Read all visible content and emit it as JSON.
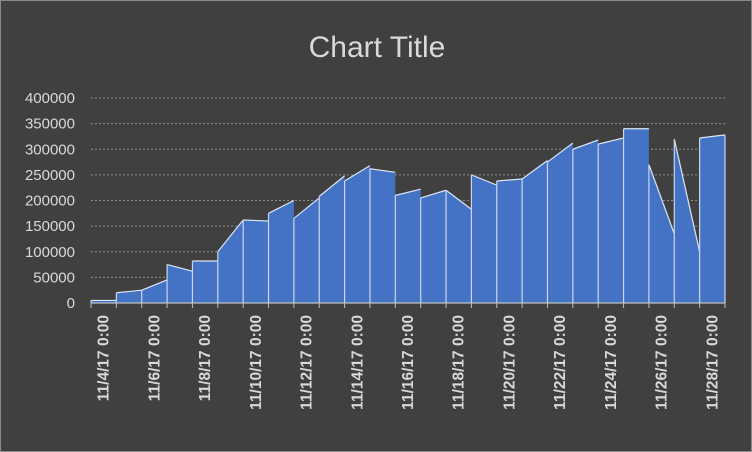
{
  "chart_data": {
    "type": "area",
    "title": "Chart Title",
    "xlabel": "",
    "ylabel": "",
    "ylim": [
      0,
      400000
    ],
    "yticks": [
      0,
      50000,
      100000,
      150000,
      200000,
      250000,
      300000,
      350000,
      400000
    ],
    "ytick_labels": [
      "0",
      "50000",
      "100000",
      "150000",
      "200000",
      "250000",
      "300000",
      "350000",
      "400000"
    ],
    "xtick_labels": [
      "11/4/17  0:00",
      "11/6/17  0:00",
      "11/8/17  0:00",
      "11/10/17  0:00",
      "11/12/17  0:00",
      "11/14/17  0:00",
      "11/16/17  0:00",
      "11/18/17  0:00",
      "11/20/17  0:00",
      "11/22/17  0:00",
      "11/24/17  0:00",
      "11/26/17  0:00",
      "11/28/17  0:00"
    ],
    "grid": true,
    "legend": "none",
    "series": [
      {
        "color": "#4472c4",
        "points": [
          {
            "day": "11/4/17",
            "start": 5000,
            "end": 5000
          },
          {
            "day": "11/5/17",
            "start": 20000,
            "end": 25000
          },
          {
            "day": "11/6/17",
            "start": 25000,
            "end": 45000
          },
          {
            "day": "11/7/17",
            "start": 75000,
            "end": 62000
          },
          {
            "day": "11/8/17",
            "start": 82000,
            "end": 82000
          },
          {
            "day": "11/9/17",
            "start": 100000,
            "end": 162000
          },
          {
            "day": "11/10/17",
            "start": 162000,
            "end": 160000
          },
          {
            "day": "11/11/17",
            "start": 175000,
            "end": 200000
          },
          {
            "day": "11/12/17",
            "start": 165000,
            "end": 205000
          },
          {
            "day": "11/13/17",
            "start": 208000,
            "end": 248000
          },
          {
            "day": "11/14/17",
            "start": 238000,
            "end": 268000
          },
          {
            "day": "11/15/17",
            "start": 262000,
            "end": 255000
          },
          {
            "day": "11/16/17",
            "start": 210000,
            "end": 222000
          },
          {
            "day": "11/17/17",
            "start": 205000,
            "end": 220000
          },
          {
            "day": "11/18/17",
            "start": 220000,
            "end": 183000
          },
          {
            "day": "11/19/17",
            "start": 250000,
            "end": 230000
          },
          {
            "day": "11/20/17",
            "start": 238000,
            "end": 242000
          },
          {
            "day": "11/21/17",
            "start": 242000,
            "end": 278000
          },
          {
            "day": "11/22/17",
            "start": 275000,
            "end": 312000
          },
          {
            "day": "11/23/17",
            "start": 300000,
            "end": 318000
          },
          {
            "day": "11/24/17",
            "start": 310000,
            "end": 322000
          },
          {
            "day": "11/25/17",
            "start": 340000,
            "end": 340000
          },
          {
            "day": "11/26/17",
            "start": 270000,
            "end": 135000
          },
          {
            "day": "11/27/17",
            "start": 320000,
            "end": 100000
          },
          {
            "day": "11/28/17",
            "start": 322000,
            "end": 328000
          }
        ]
      }
    ]
  }
}
